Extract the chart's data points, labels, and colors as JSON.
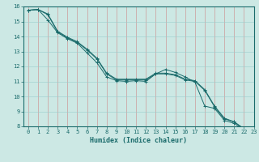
{
  "title": "",
  "xlabel": "Humidex (Indice chaleur)",
  "background_color": "#cce8e4",
  "grid_color_red": "#cc8888",
  "grid_color_teal": "#99cccc",
  "line_color": "#1a6b6b",
  "x": [
    0,
    1,
    2,
    3,
    4,
    5,
    6,
    7,
    8,
    9,
    10,
    11,
    12,
    13,
    14,
    15,
    16,
    17,
    18,
    19,
    20,
    21,
    22,
    23
  ],
  "line1": [
    15.75,
    15.8,
    15.45,
    14.3,
    13.9,
    13.6,
    13.1,
    12.5,
    11.5,
    11.1,
    11.1,
    11.1,
    11.1,
    11.5,
    11.5,
    11.4,
    11.1,
    11.0,
    10.4,
    9.3,
    8.5,
    8.3,
    7.8,
    7.65
  ],
  "line2": [
    15.75,
    15.8,
    15.1,
    14.25,
    13.85,
    13.55,
    12.9,
    12.25,
    11.3,
    11.05,
    11.0,
    11.05,
    11.0,
    11.5,
    11.8,
    11.6,
    11.3,
    10.95,
    9.35,
    9.2,
    8.4,
    8.2,
    7.75,
    7.6
  ],
  "line3": [
    15.75,
    15.8,
    15.5,
    14.35,
    13.95,
    13.65,
    13.15,
    12.55,
    11.55,
    11.15,
    11.15,
    11.15,
    11.15,
    11.55,
    11.55,
    11.45,
    11.15,
    11.05,
    10.45,
    9.35,
    8.55,
    8.3,
    7.85,
    7.7
  ],
  "ylim": [
    8,
    16
  ],
  "xlim": [
    -0.5,
    23
  ],
  "yticks": [
    8,
    9,
    10,
    11,
    12,
    13,
    14,
    15,
    16
  ],
  "xticks": [
    0,
    1,
    2,
    3,
    4,
    5,
    6,
    7,
    8,
    9,
    10,
    11,
    12,
    13,
    14,
    15,
    16,
    17,
    18,
    19,
    20,
    21,
    22,
    23
  ],
  "tick_fontsize": 5,
  "xlabel_fontsize": 6
}
